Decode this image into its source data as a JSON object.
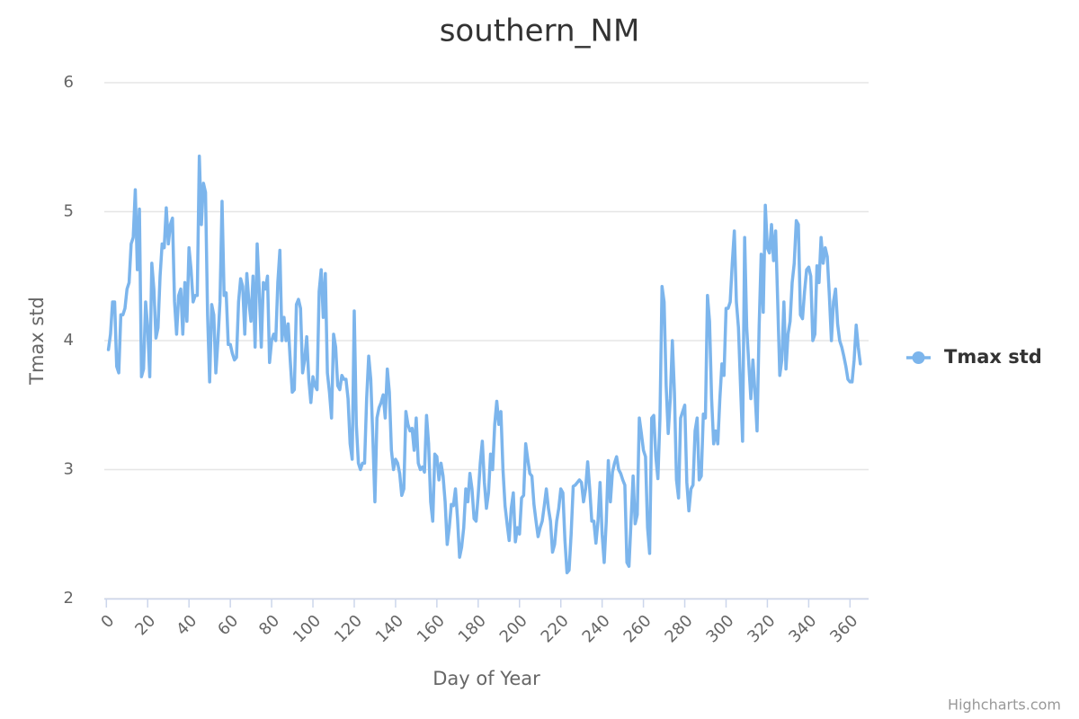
{
  "chart_data": {
    "type": "line",
    "title": "southern_NM",
    "x_label": "Day of Year",
    "y_label": "Tmax std",
    "credits": "Highcharts.com",
    "legend": "right",
    "grid": true,
    "xlim": [
      -1,
      369
    ],
    "ylim": [
      2,
      6
    ],
    "xticks": [
      0,
      20,
      40,
      60,
      80,
      100,
      120,
      140,
      160,
      180,
      200,
      220,
      240,
      260,
      280,
      300,
      320,
      340,
      360
    ],
    "yticks": [
      2,
      3,
      4,
      5,
      6
    ],
    "x": [
      1,
      2,
      3,
      4,
      5,
      6,
      7,
      8,
      9,
      10,
      11,
      12,
      13,
      14,
      15,
      16,
      17,
      18,
      19,
      20,
      21,
      22,
      23,
      24,
      25,
      26,
      27,
      28,
      29,
      30,
      31,
      32,
      33,
      34,
      35,
      36,
      37,
      38,
      39,
      40,
      41,
      42,
      43,
      44,
      45,
      46,
      47,
      48,
      49,
      50,
      51,
      52,
      53,
      54,
      55,
      56,
      57,
      58,
      59,
      60,
      61,
      62,
      63,
      64,
      65,
      66,
      67,
      68,
      69,
      70,
      71,
      72,
      73,
      74,
      75,
      76,
      77,
      78,
      79,
      80,
      81,
      82,
      83,
      84,
      85,
      86,
      87,
      88,
      89,
      90,
      91,
      92,
      93,
      94,
      95,
      96,
      97,
      98,
      99,
      100,
      101,
      102,
      103,
      104,
      105,
      106,
      107,
      108,
      109,
      110,
      111,
      112,
      113,
      114,
      115,
      116,
      117,
      118,
      119,
      120,
      121,
      122,
      123,
      124,
      125,
      126,
      127,
      128,
      129,
      130,
      131,
      132,
      133,
      134,
      135,
      136,
      137,
      138,
      139,
      140,
      141,
      142,
      143,
      144,
      145,
      146,
      147,
      148,
      149,
      150,
      151,
      152,
      153,
      154,
      155,
      156,
      157,
      158,
      159,
      160,
      161,
      162,
      163,
      164,
      165,
      166,
      167,
      168,
      169,
      170,
      171,
      172,
      173,
      174,
      175,
      176,
      177,
      178,
      179,
      180,
      181,
      182,
      183,
      184,
      185,
      186,
      187,
      188,
      189,
      190,
      191,
      192,
      193,
      194,
      195,
      196,
      197,
      198,
      199,
      200,
      201,
      202,
      203,
      204,
      205,
      206,
      207,
      208,
      209,
      210,
      211,
      212,
      213,
      214,
      215,
      216,
      217,
      218,
      219,
      220,
      221,
      222,
      223,
      224,
      225,
      226,
      227,
      228,
      229,
      230,
      231,
      232,
      233,
      234,
      235,
      236,
      237,
      238,
      239,
      240,
      241,
      242,
      243,
      244,
      245,
      246,
      247,
      248,
      249,
      250,
      251,
      252,
      253,
      254,
      255,
      256,
      257,
      258,
      259,
      260,
      261,
      262,
      263,
      264,
      265,
      266,
      267,
      268,
      269,
      270,
      271,
      272,
      273,
      274,
      275,
      276,
      277,
      278,
      279,
      280,
      281,
      282,
      283,
      284,
      285,
      286,
      287,
      288,
      289,
      290,
      291,
      292,
      293,
      294,
      295,
      296,
      297,
      298,
      299,
      300,
      301,
      302,
      303,
      304,
      305,
      306,
      307,
      308,
      309,
      310,
      311,
      312,
      313,
      314,
      315,
      316,
      317,
      318,
      319,
      320,
      321,
      322,
      323,
      324,
      325,
      326,
      327,
      328,
      329,
      330,
      331,
      332,
      333,
      334,
      335,
      336,
      337,
      338,
      339,
      340,
      341,
      342,
      343,
      344,
      345,
      346,
      347,
      348,
      349,
      350,
      351,
      352,
      353,
      354,
      355,
      356,
      357,
      358,
      359,
      360,
      361,
      362,
      363,
      364,
      365
    ],
    "series": [
      {
        "name": "Tmax std",
        "color": "#7cb5ec",
        "values": [
          3.93,
          4.05,
          4.3,
          4.3,
          3.8,
          3.75,
          4.2,
          4.2,
          4.25,
          4.4,
          4.45,
          4.75,
          4.8,
          5.17,
          4.55,
          5.02,
          3.72,
          3.78,
          4.3,
          4.1,
          3.72,
          4.6,
          4.4,
          4.02,
          4.1,
          4.5,
          4.75,
          4.72,
          5.03,
          4.75,
          4.9,
          4.95,
          4.3,
          4.05,
          4.35,
          4.4,
          4.05,
          4.45,
          4.15,
          4.72,
          4.55,
          4.3,
          4.35,
          4.35,
          5.43,
          4.9,
          5.22,
          5.15,
          4.2,
          3.68,
          4.28,
          4.2,
          3.75,
          4.0,
          4.3,
          5.08,
          4.35,
          4.37,
          3.97,
          3.97,
          3.9,
          3.85,
          3.87,
          4.3,
          4.48,
          4.42,
          4.05,
          4.52,
          4.3,
          4.15,
          4.5,
          3.95,
          4.75,
          4.4,
          3.95,
          4.45,
          4.4,
          4.5,
          3.83,
          4.0,
          4.05,
          4.0,
          4.45,
          4.7,
          4.0,
          4.18,
          4.0,
          4.13,
          3.85,
          3.6,
          3.62,
          4.28,
          4.32,
          4.25,
          3.75,
          3.85,
          4.03,
          3.7,
          3.52,
          3.72,
          3.65,
          3.62,
          4.38,
          4.55,
          4.18,
          4.52,
          3.75,
          3.6,
          3.4,
          4.05,
          3.95,
          3.65,
          3.62,
          3.73,
          3.7,
          3.7,
          3.55,
          3.2,
          3.08,
          4.23,
          3.35,
          3.05,
          3.0,
          3.05,
          3.05,
          3.55,
          3.88,
          3.7,
          3.25,
          2.75,
          3.4,
          3.48,
          3.52,
          3.58,
          3.4,
          3.78,
          3.6,
          3.15,
          3.0,
          3.08,
          3.05,
          2.97,
          2.8,
          2.85,
          3.45,
          3.35,
          3.3,
          3.32,
          3.15,
          3.4,
          3.05,
          3.0,
          3.02,
          2.98,
          3.42,
          3.2,
          2.75,
          2.6,
          3.12,
          3.1,
          2.92,
          3.05,
          2.95,
          2.75,
          2.42,
          2.55,
          2.73,
          2.72,
          2.85,
          2.62,
          2.32,
          2.4,
          2.55,
          2.85,
          2.75,
          2.97,
          2.85,
          2.62,
          2.6,
          2.8,
          3.05,
          3.22,
          2.9,
          2.7,
          2.82,
          3.12,
          3.0,
          3.35,
          3.53,
          3.35,
          3.45,
          3.0,
          2.72,
          2.58,
          2.45,
          2.7,
          2.82,
          2.44,
          2.55,
          2.5,
          2.78,
          2.8,
          3.2,
          3.08,
          2.97,
          2.95,
          2.73,
          2.6,
          2.48,
          2.55,
          2.6,
          2.72,
          2.85,
          2.7,
          2.6,
          2.36,
          2.42,
          2.6,
          2.7,
          2.85,
          2.82,
          2.45,
          2.2,
          2.22,
          2.5,
          2.87,
          2.88,
          2.9,
          2.92,
          2.9,
          2.75,
          2.85,
          3.06,
          2.85,
          2.6,
          2.6,
          2.43,
          2.6,
          2.9,
          2.5,
          2.28,
          2.6,
          3.07,
          2.75,
          2.98,
          3.05,
          3.1,
          3.0,
          2.97,
          2.92,
          2.88,
          2.28,
          2.25,
          2.6,
          2.95,
          2.58,
          2.65,
          3.4,
          3.28,
          3.15,
          3.1,
          2.55,
          2.35,
          3.4,
          3.42,
          3.1,
          2.93,
          3.4,
          4.42,
          4.3,
          3.65,
          3.28,
          3.55,
          4.0,
          3.6,
          2.92,
          2.78,
          3.4,
          3.45,
          3.5,
          2.9,
          2.68,
          2.85,
          2.88,
          3.3,
          3.4,
          2.92,
          2.95,
          3.43,
          3.4,
          4.35,
          4.15,
          3.55,
          3.2,
          3.3,
          3.2,
          3.55,
          3.82,
          3.73,
          4.25,
          4.25,
          4.3,
          4.6,
          4.85,
          4.3,
          4.1,
          3.65,
          3.22,
          4.8,
          4.1,
          3.82,
          3.55,
          3.85,
          3.6,
          3.3,
          4.1,
          4.67,
          4.22,
          5.05,
          4.72,
          4.68,
          4.9,
          4.62,
          4.85,
          4.3,
          3.73,
          3.85,
          4.3,
          3.78,
          4.05,
          4.15,
          4.45,
          4.6,
          4.93,
          4.9,
          4.2,
          4.17,
          4.38,
          4.55,
          4.57,
          4.5,
          4.0,
          4.05,
          4.58,
          4.45,
          4.8,
          4.6,
          4.72,
          4.65,
          4.35,
          4.0,
          4.3,
          4.4,
          4.13,
          4.0,
          3.95,
          3.88,
          3.8,
          3.7,
          3.68,
          3.68,
          3.85,
          4.12,
          3.95,
          3.82
        ]
      }
    ]
  }
}
